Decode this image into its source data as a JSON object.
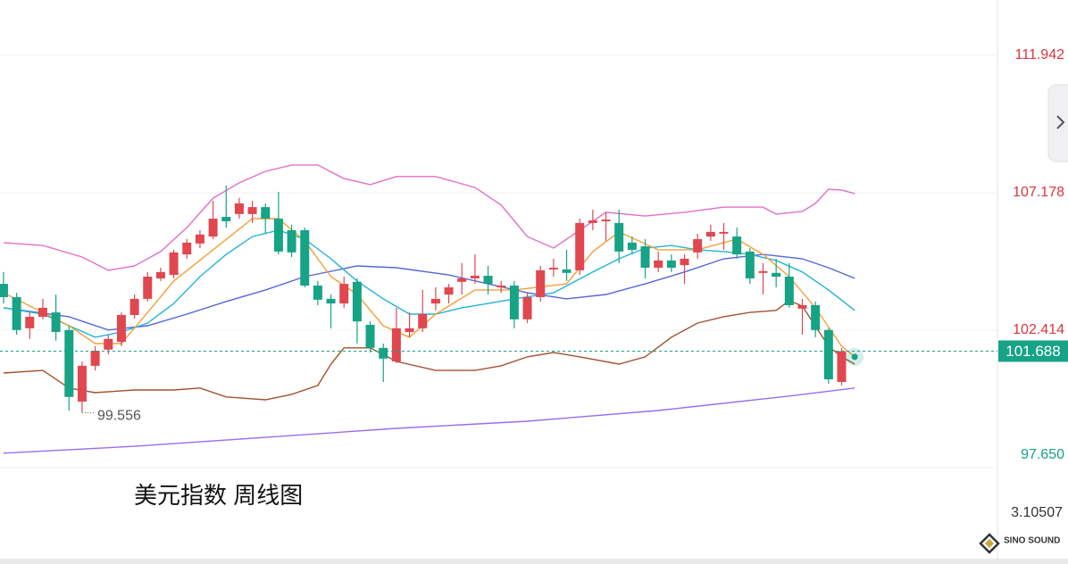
{
  "chart_data": {
    "type": "candlestick",
    "title": "美元指数 周线图",
    "x": [
      0,
      1,
      2,
      3,
      4,
      5,
      6,
      7,
      8,
      9,
      10,
      11,
      12,
      13,
      14,
      15,
      16,
      17,
      18,
      19,
      20,
      21,
      22,
      23,
      24,
      25,
      26,
      27,
      28,
      29,
      30,
      31,
      32,
      33,
      34,
      35,
      36,
      37,
      38,
      39,
      40,
      41,
      42,
      43,
      44,
      45,
      46,
      47,
      48,
      49,
      50,
      51,
      52,
      53,
      54,
      55,
      56,
      57,
      58,
      59,
      60,
      61,
      62,
      63,
      64
    ],
    "open": [
      104.02,
      103.56,
      102.48,
      102.88,
      103.03,
      102.42,
      99.94,
      101.18,
      101.74,
      102.01,
      102.94,
      103.5,
      104.21,
      104.33,
      105.04,
      105.42,
      105.66,
      106.34,
      106.44,
      106.44,
      106.68,
      106.28,
      105.88,
      105.88,
      103.96,
      103.5,
      103.34,
      104.09,
      102.6,
      101.8,
      101.33,
      102.35,
      102.48,
      103.34,
      103.65,
      104.09,
      104.21,
      104.3,
      103.9,
      103.96,
      102.79,
      103.56,
      104.52,
      104.52,
      104.49,
      106.13,
      106.19,
      106.13,
      105.45,
      105.32,
      104.58,
      104.83,
      104.67,
      105.11,
      105.66,
      105.76,
      105.66,
      105.14,
      104.4,
      104.4,
      104.27,
      103.16,
      103.28,
      102.42,
      100.62
    ],
    "high": [
      104.43,
      103.71,
      103.03,
      103.5,
      103.65,
      102.57,
      101.33,
      101.86,
      102.26,
      103.03,
      103.65,
      104.43,
      104.58,
      105.2,
      105.57,
      105.88,
      106.9,
      107.43,
      107.0,
      106.9,
      106.81,
      107.21,
      106.07,
      105.97,
      104.12,
      103.65,
      104.27,
      104.21,
      102.72,
      101.95,
      103.19,
      103.03,
      103.81,
      103.9,
      104.02,
      104.74,
      105.04,
      104.64,
      104.12,
      104.12,
      103.71,
      104.64,
      104.89,
      105.2,
      106.28,
      106.59,
      106.5,
      106.59,
      105.66,
      105.57,
      105.14,
      105.04,
      105.04,
      105.76,
      106.07,
      106.13,
      105.97,
      105.26,
      104.74,
      104.89,
      104.74,
      103.5,
      103.41,
      102.48,
      101.8
    ],
    "low": [
      103.34,
      102.26,
      102.11,
      102.79,
      102.05,
      99.63,
      99.556,
      101.02,
      101.58,
      101.86,
      102.82,
      103.41,
      104.12,
      104.21,
      104.89,
      105.26,
      105.57,
      105.97,
      106.28,
      106.13,
      105.76,
      105.04,
      104.95,
      103.9,
      103.28,
      102.48,
      103.19,
      101.95,
      101.64,
      100.62,
      101.27,
      102.17,
      102.35,
      103.1,
      103.34,
      103.65,
      104.02,
      103.65,
      103.71,
      102.48,
      102.66,
      103.41,
      104.27,
      104.12,
      104.33,
      105.88,
      105.51,
      104.74,
      105.04,
      104.21,
      104.43,
      104.43,
      104.02,
      104.89,
      105.51,
      105.2,
      104.89,
      104.02,
      103.65,
      103.9,
      103.19,
      102.26,
      102.17,
      100.56,
      100.5
    ],
    "close": [
      103.56,
      102.42,
      102.88,
      103.19,
      102.35,
      100.1,
      101.18,
      101.7,
      102.11,
      102.94,
      103.5,
      104.27,
      104.43,
      105.11,
      105.45,
      105.73,
      106.28,
      106.19,
      106.81,
      106.68,
      106.28,
      105.14,
      105.11,
      103.96,
      103.47,
      103.34,
      104.02,
      102.72,
      101.8,
      101.43,
      102.48,
      102.48,
      102.97,
      103.5,
      103.9,
      104.21,
      104.3,
      104.02,
      103.96,
      102.79,
      103.56,
      104.49,
      104.58,
      104.4,
      106.13,
      106.22,
      106.25,
      105.14,
      105.2,
      104.58,
      104.83,
      104.58,
      104.89,
      105.57,
      105.82,
      105.82,
      105.04,
      104.21,
      104.46,
      104.27,
      103.28,
      103.28,
      102.42,
      100.71,
      101.688
    ],
    "up_color": "#e0474f",
    "down_color": "#16a386",
    "lines": [
      {
        "color": "#9a6cf0",
        "x": [
          0,
          10,
          20,
          30,
          40,
          50,
          60,
          65
        ],
        "values": [
          98.15,
          98.39,
          98.7,
          99.01,
          99.26,
          99.63,
          100.13,
          100.41
        ]
      },
      {
        "color": "#a0532e",
        "x": [
          0,
          3,
          5,
          7,
          10,
          13,
          15,
          17,
          20,
          22,
          24,
          25,
          26,
          28,
          30,
          33,
          36,
          38,
          40,
          42,
          44,
          47,
          49,
          51,
          53,
          55,
          57,
          59,
          60,
          61,
          63,
          64,
          65
        ],
        "values": [
          100.93,
          101.02,
          100.41,
          100.25,
          100.34,
          100.34,
          100.41,
          100.1,
          100.0,
          100.19,
          100.5,
          101.24,
          101.8,
          101.8,
          101.33,
          101.02,
          101.02,
          101.18,
          101.49,
          101.64,
          101.49,
          101.24,
          101.49,
          102.17,
          102.66,
          102.88,
          103.03,
          103.1,
          103.44,
          103.25,
          101.86,
          101.49,
          101.24
        ]
      },
      {
        "color": "#e26fcb",
        "x": [
          0,
          3,
          6,
          8,
          10,
          12,
          14,
          16,
          18,
          20,
          22,
          24,
          26,
          28,
          30,
          33,
          36,
          38,
          40,
          42,
          44,
          46,
          49,
          52,
          55,
          58,
          59,
          61,
          62,
          63,
          64,
          65
        ],
        "values": [
          105.45,
          105.35,
          104.95,
          104.49,
          104.64,
          105.14,
          105.97,
          106.99,
          107.52,
          107.92,
          108.14,
          108.14,
          107.67,
          107.46,
          107.74,
          107.74,
          107.36,
          106.75,
          105.66,
          105.26,
          105.88,
          106.5,
          106.37,
          106.5,
          106.68,
          106.68,
          106.44,
          106.53,
          106.81,
          107.3,
          107.27,
          107.15
        ]
      },
      {
        "color": "#5566d8",
        "x": [
          0,
          5,
          8,
          11,
          14,
          17,
          20,
          23,
          27,
          30,
          34,
          37,
          40,
          43,
          46,
          49,
          52,
          55,
          58,
          61,
          63,
          65
        ],
        "values": [
          103.19,
          102.88,
          102.42,
          102.57,
          102.97,
          103.41,
          103.81,
          104.27,
          104.64,
          104.58,
          104.33,
          104.02,
          103.71,
          103.5,
          103.65,
          104.02,
          104.43,
          104.89,
          105.04,
          104.89,
          104.58,
          104.21
        ]
      },
      {
        "color": "#22b4d8",
        "x": [
          0,
          3,
          5,
          7,
          9,
          11,
          13,
          15,
          17,
          19,
          21,
          23,
          25,
          27,
          29,
          31,
          33,
          35,
          37,
          39,
          42,
          45,
          47,
          49,
          51,
          53,
          55,
          57,
          59,
          61,
          63,
          65
        ],
        "values": [
          103.19,
          102.97,
          102.57,
          102.17,
          102.35,
          102.66,
          103.34,
          104.27,
          105.04,
          105.66,
          105.88,
          105.57,
          104.89,
          104.12,
          103.5,
          102.97,
          102.97,
          103.19,
          103.34,
          103.5,
          103.71,
          104.43,
          104.89,
          105.26,
          105.35,
          105.2,
          105.14,
          105.04,
          104.83,
          104.43,
          103.81,
          103.1
        ]
      },
      {
        "color": "#f4a038",
        "x": [
          0,
          3,
          5,
          7,
          9,
          11,
          13,
          16,
          19,
          21,
          23,
          25,
          27,
          29,
          31,
          33,
          36,
          39,
          43,
          45,
          47,
          50,
          53,
          56,
          58,
          60,
          62,
          64,
          65
        ],
        "values": [
          103.71,
          103.03,
          102.57,
          101.95,
          101.95,
          103.03,
          104.12,
          105.2,
          106.28,
          106.28,
          105.51,
          104.27,
          103.65,
          102.57,
          102.17,
          102.97,
          103.81,
          103.81,
          104.02,
          105.14,
          105.82,
          105.2,
          105.2,
          105.57,
          105.04,
          104.27,
          103.19,
          101.86,
          101.49
        ]
      }
    ],
    "xlim": [
      -0.27,
      75.9
    ],
    "ylim": [
      97.65,
      113.86
    ],
    "yticks": [
      {
        "value": 97.65,
        "label": "97.650"
      },
      102.414,
      107.178,
      111.942
    ],
    "grid": true,
    "indicator_value": 3.10507,
    "watermark": "SINO SOUND"
  }
}
